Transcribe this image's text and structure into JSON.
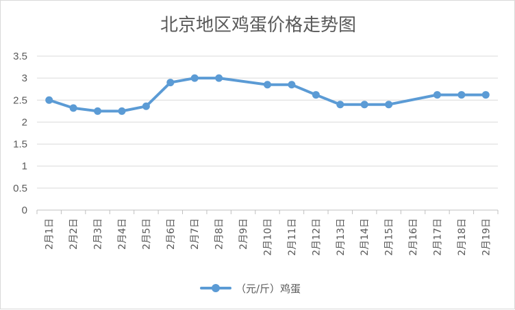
{
  "chart_data": {
    "type": "line",
    "title": "北京地区鸡蛋价格走势图",
    "xlabel": "",
    "ylabel": "",
    "categories": [
      "2月1日",
      "2月2日",
      "2月3日",
      "2月4日",
      "2月5日",
      "2月6日",
      "2月7日",
      "2月8日",
      "2月9日",
      "2月10日",
      "2月11日",
      "2月12日",
      "2月13日",
      "2月14日",
      "2月15日",
      "2月16日",
      "2月17日",
      "2月18日",
      "2月19日"
    ],
    "series": [
      {
        "name": "（元/斤）鸡蛋",
        "color": "#5b9bd5",
        "values": [
          2.5,
          2.32,
          2.25,
          2.25,
          2.36,
          2.9,
          3.0,
          3.0,
          null,
          2.85,
          2.85,
          2.62,
          2.4,
          2.4,
          2.4,
          null,
          2.62,
          2.62,
          2.62
        ]
      }
    ],
    "ylim": [
      0,
      3.5
    ],
    "yticks": [
      "0",
      "0.5",
      "1",
      "1.5",
      "2",
      "2.5",
      "3",
      "3.5"
    ],
    "grid": true,
    "legend": "bottom"
  }
}
